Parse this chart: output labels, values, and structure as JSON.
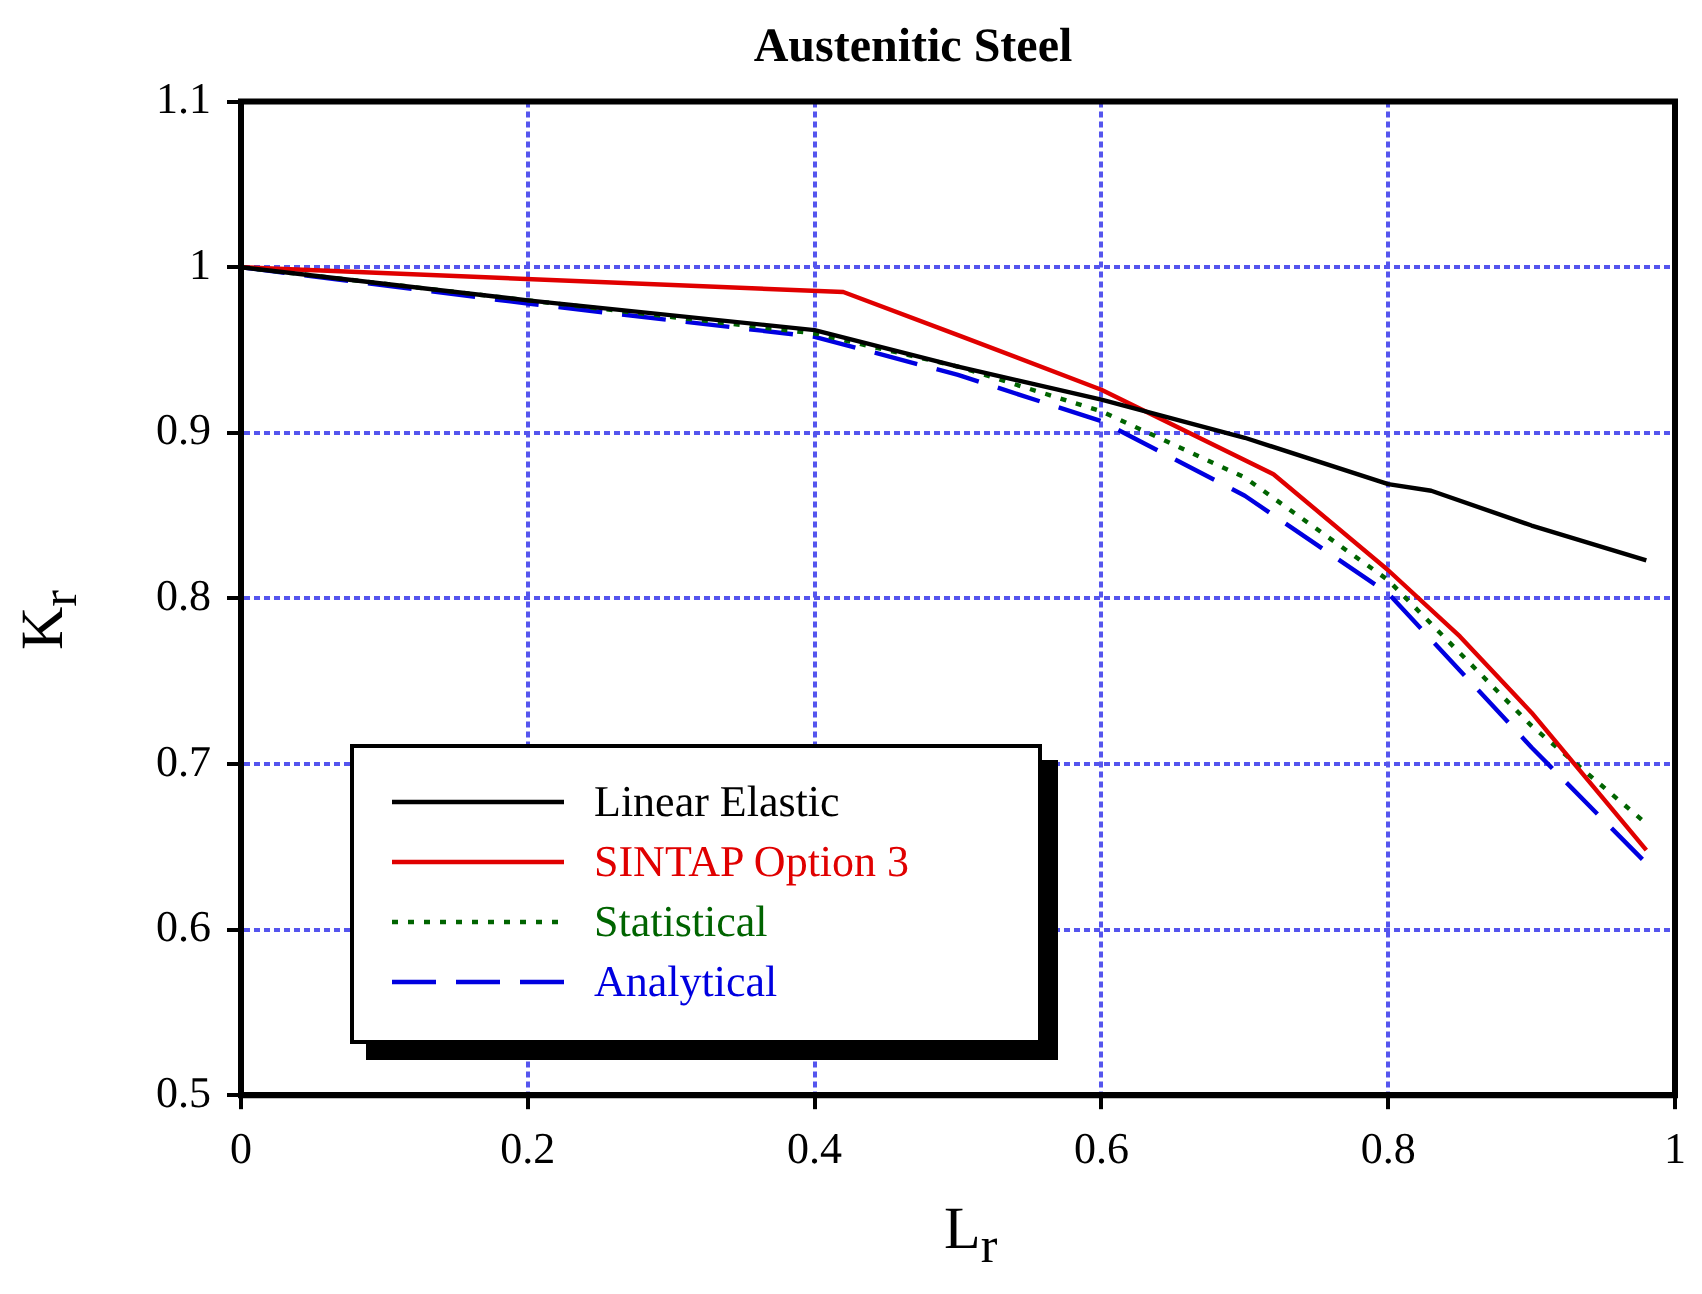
{
  "chart_data": {
    "type": "line",
    "title": "Austenitic Steel",
    "xlabel": "L$_{r}$",
    "ylabel": "K$_{r}$",
    "xlim": [
      0,
      1
    ],
    "xticks": [
      0,
      0.2,
      0.4,
      0.6,
      0.8,
      1
    ],
    "ylim": [
      0.5,
      1.1
    ],
    "yticks": [
      0.5,
      0.6,
      0.7,
      0.8,
      0.9,
      1,
      1.1
    ],
    "grid": true,
    "legend": "bottom left",
    "marker": "none",
    "series": [
      {
        "name": "Linear Elastic",
        "color": "#000000",
        "line_style": "solid",
        "x": [
          0,
          0.2,
          0.4,
          0.5,
          0.6,
          0.7,
          0.8,
          0.83,
          0.9,
          0.98
        ],
        "values": [
          1,
          0.98,
          0.962,
          0.94,
          0.92,
          0.897,
          0.869,
          0.865,
          0.844,
          0.823
        ]
      },
      {
        "name": "SINTAP Option 3",
        "color": "#e00000",
        "line_style": "solid",
        "x": [
          0,
          0.42,
          0.5,
          0.6,
          0.72,
          0.8,
          0.85,
          0.9,
          0.98
        ],
        "values": [
          1,
          0.985,
          0.959,
          0.926,
          0.875,
          0.817,
          0.777,
          0.731,
          0.648
        ]
      },
      {
        "name": "Statistical",
        "color": "#006400",
        "line_style": "dotted",
        "x": [
          0,
          0.2,
          0.4,
          0.5,
          0.6,
          0.7,
          0.8,
          0.9,
          0.98
        ],
        "values": [
          1,
          0.98,
          0.96,
          0.94,
          0.913,
          0.873,
          0.811,
          0.723,
          0.664
        ]
      },
      {
        "name": "Analytical",
        "color": "#0000e0",
        "line_style": "dashed",
        "x": [
          0,
          0.2,
          0.4,
          0.5,
          0.6,
          0.7,
          0.8,
          0.9,
          0.98
        ],
        "values": [
          1,
          0.978,
          0.958,
          0.935,
          0.907,
          0.862,
          0.803,
          0.71,
          0.64
        ]
      }
    ]
  }
}
